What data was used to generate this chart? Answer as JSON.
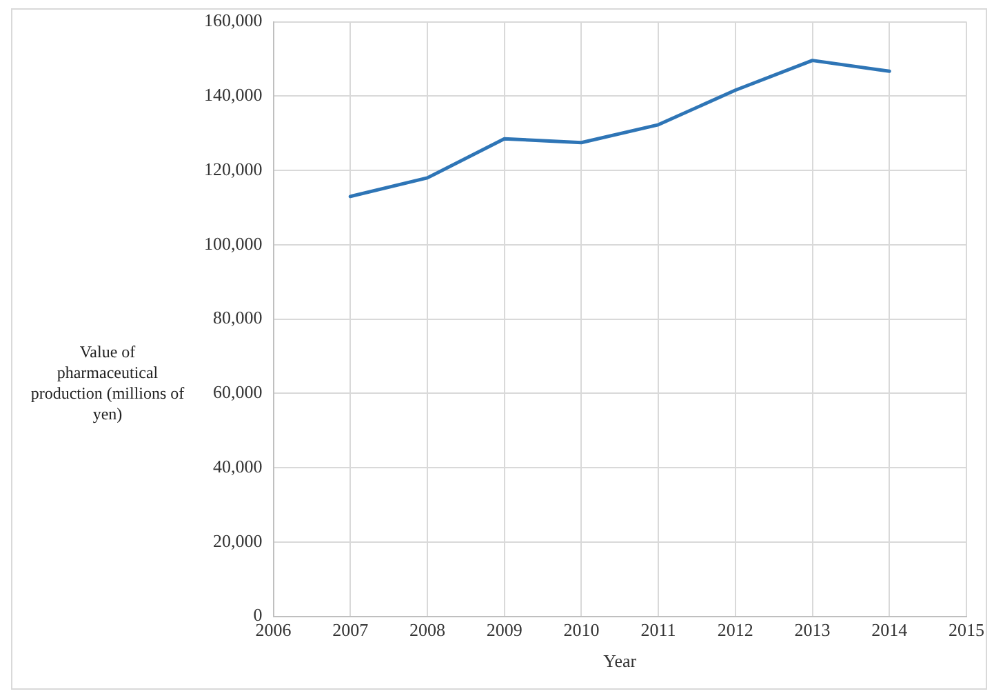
{
  "chart_data": {
    "type": "line",
    "xlabel": "Year",
    "ylabel": "Value of pharmaceutical production (millions of yen)",
    "x": [
      2007,
      2008,
      2009,
      2010,
      2011,
      2012,
      2013,
      2014
    ],
    "series": [
      {
        "color": "#2e75b6",
        "values": [
          113000,
          118000,
          128500,
          127500,
          132300,
          141600,
          149600,
          146700
        ]
      }
    ],
    "xlim": [
      2006,
      2015
    ],
    "xticks": [
      2006,
      2007,
      2008,
      2009,
      2010,
      2011,
      2012,
      2013,
      2014,
      2015
    ],
    "ylim": [
      0,
      160000
    ],
    "yticks": [
      0,
      {
        "value": 20000,
        "label": "20,000"
      },
      {
        "value": 40000,
        "label": "40,000"
      },
      {
        "value": 60000,
        "label": "60,000"
      },
      {
        "value": 80000,
        "label": "80,000"
      },
      {
        "value": 100000,
        "label": "100,000"
      },
      {
        "value": 120000,
        "label": "120,000"
      },
      {
        "value": 140000,
        "label": "140,000"
      },
      {
        "value": 160000,
        "label": "160,000"
      }
    ],
    "grid": true,
    "legend": false,
    "marker": "none",
    "line_style": "solid"
  }
}
